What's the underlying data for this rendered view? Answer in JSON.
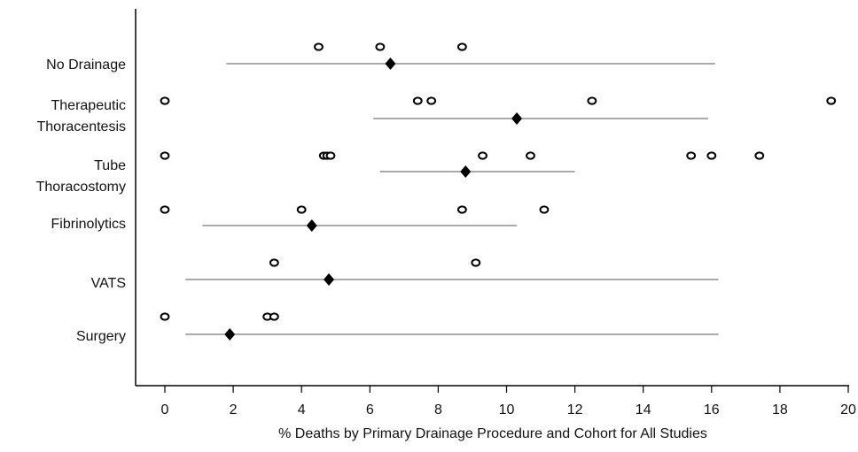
{
  "chart_data": {
    "type": "scatter",
    "title": "",
    "xlabel": "% Deaths by Primary Drainage Procedure and Cohort for All Studies",
    "ylabel": "",
    "xlim": [
      -0.9,
      20
    ],
    "xticks": [
      0,
      2,
      4,
      6,
      8,
      10,
      12,
      14,
      16,
      18,
      20
    ],
    "grid": false,
    "legend": "none",
    "categories": [
      {
        "label_lines": [
          "No Drainage"
        ],
        "cohorts": [
          4.5,
          6.3,
          8.7
        ],
        "mean": 6.6,
        "ci": [
          1.8,
          16.1
        ]
      },
      {
        "label_lines": [
          "Therapeutic",
          "Thoracentesis"
        ],
        "cohorts": [
          0,
          7.4,
          7.8,
          12.5,
          19.5
        ],
        "mean": 10.3,
        "ci": [
          6.1,
          15.9
        ]
      },
      {
        "label_lines": [
          "Tube",
          "Thoracostomy"
        ],
        "cohorts": [
          0,
          4.65,
          4.75,
          4.85,
          9.3,
          10.7,
          15.4,
          16.0,
          17.4
        ],
        "mean": 8.8,
        "ci": [
          6.3,
          12.0
        ]
      },
      {
        "label_lines": [
          "Fibrinolytics"
        ],
        "cohorts": [
          0,
          4.0,
          8.7,
          11.1
        ],
        "mean": 4.3,
        "ci": [
          1.1,
          10.3
        ]
      },
      {
        "label_lines": [
          "VATS"
        ],
        "cohorts": [
          3.2,
          9.1
        ],
        "mean": 4.8,
        "ci": [
          0.6,
          16.2
        ]
      },
      {
        "label_lines": [
          "Surgery"
        ],
        "cohorts": [
          0,
          3.0,
          3.2
        ],
        "mean": 1.9,
        "ci": [
          0.6,
          16.2
        ]
      }
    ]
  }
}
